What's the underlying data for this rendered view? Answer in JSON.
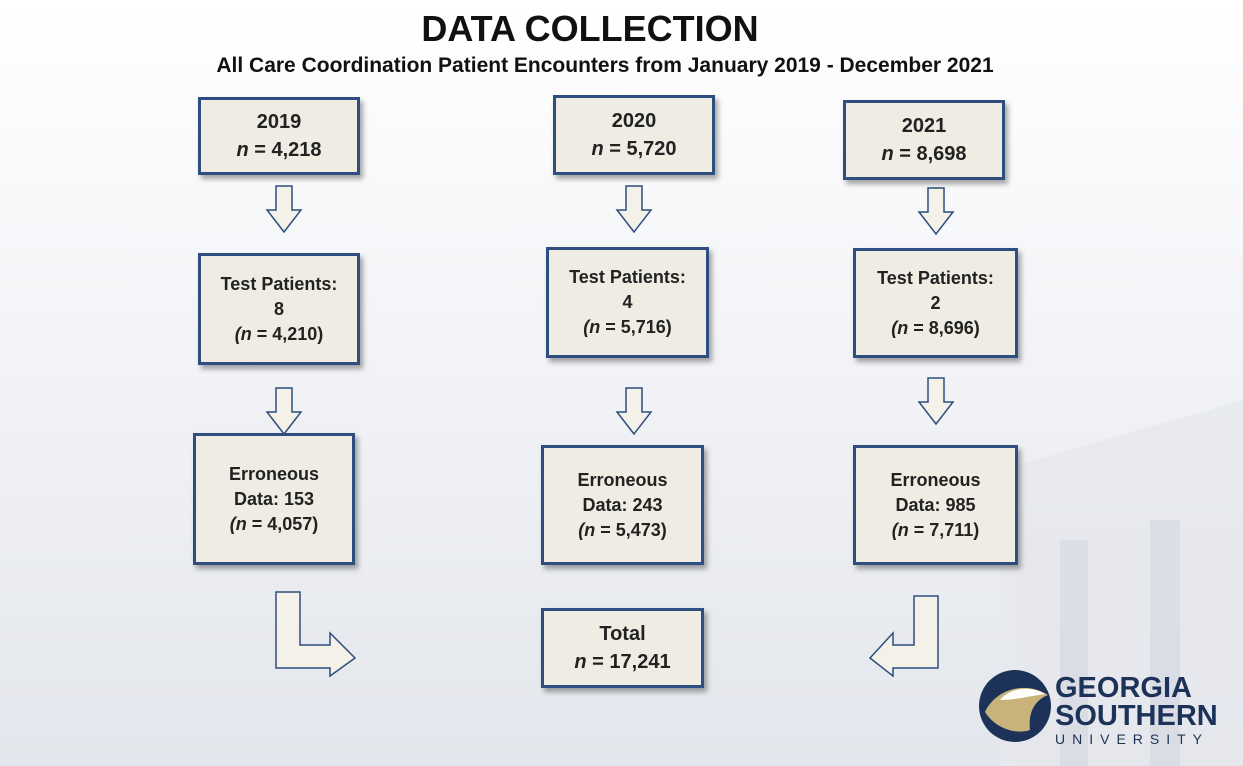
{
  "header": {
    "title": "DATA COLLECTION",
    "subtitle": "All Care Coordination Patient Encounters from January 2019 - December 2021"
  },
  "boxes": [
    {
      "lines": [
        [
          {
            "text": "2019"
          }
        ],
        [
          {
            "text": "n",
            "italic": true
          },
          {
            "text": " = 4,218"
          }
        ]
      ]
    },
    {
      "lines": [
        [
          {
            "text": "Test Patients:"
          }
        ],
        [
          {
            "text": "8"
          }
        ],
        [
          {
            "text": "(",
            "italic": true
          },
          {
            "text": "n",
            "italic": true
          },
          {
            "text": " = 4,210)"
          }
        ]
      ]
    },
    {
      "lines": [
        [
          {
            "text": "Erroneous"
          }
        ],
        [
          {
            "text": "Data: 153"
          }
        ],
        [
          {
            "text": "(",
            "italic": true
          },
          {
            "text": "n",
            "italic": true
          },
          {
            "text": " = 4,057)"
          }
        ]
      ]
    },
    {
      "lines": [
        [
          {
            "text": "2020"
          }
        ],
        [
          {
            "text": "n",
            "italic": true
          },
          {
            "text": " = 5,720"
          }
        ]
      ]
    },
    {
      "lines": [
        [
          {
            "text": "Test Patients:"
          }
        ],
        [
          {
            "text": "4"
          }
        ],
        [
          {
            "text": "(",
            "italic": true
          },
          {
            "text": "n",
            "italic": true
          },
          {
            "text": " = 5,716)"
          }
        ]
      ]
    },
    {
      "lines": [
        [
          {
            "text": "Erroneous"
          }
        ],
        [
          {
            "text": "Data: 243"
          }
        ],
        [
          {
            "text": "(",
            "italic": true
          },
          {
            "text": "n",
            "italic": true
          },
          {
            "text": " = 5,473)"
          }
        ]
      ]
    },
    {
      "lines": [
        [
          {
            "text": "Total"
          }
        ],
        [
          {
            "text": "n",
            "italic": true
          },
          {
            "text": " = 17,241"
          }
        ]
      ]
    },
    {
      "lines": [
        [
          {
            "text": "2021"
          }
        ],
        [
          {
            "text": "n",
            "italic": true
          },
          {
            "text": " = 8,698"
          }
        ]
      ]
    },
    {
      "lines": [
        [
          {
            "text": "Test Patients:"
          }
        ],
        [
          {
            "text": "2"
          }
        ],
        [
          {
            "text": "(",
            "italic": true
          },
          {
            "text": "n",
            "italic": true
          },
          {
            "text": " = 8,696)"
          }
        ]
      ]
    },
    {
      "lines": [
        [
          {
            "text": "Erroneous"
          }
        ],
        [
          {
            "text": "Data: 985"
          }
        ],
        [
          {
            "text": "(",
            "italic": true
          },
          {
            "text": "n",
            "italic": true
          },
          {
            "text": " = 7,711)"
          }
        ]
      ]
    }
  ],
  "logo": {
    "line1": "GEORGIA",
    "line2": "SOUTHERN",
    "line3": "UNIVERSITY"
  }
}
